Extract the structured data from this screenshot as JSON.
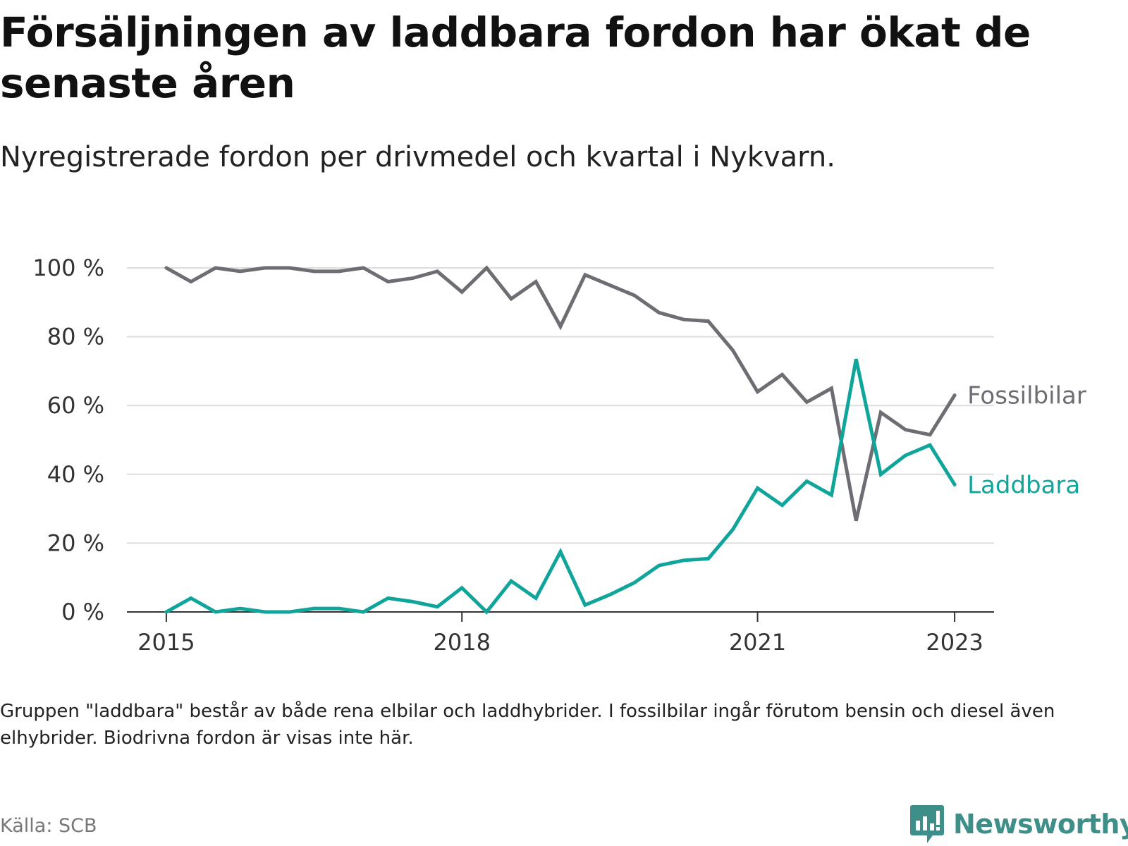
{
  "header": {
    "title": "Försäljningen av laddbara fordon har ökat de senaste åren",
    "subtitle": "Nyregistrerade fordon per drivmedel och kvartal i Nykvarn."
  },
  "footer": {
    "note": "Gruppen \"laddbara\" består av både rena elbilar och laddhybrider. I fossilbilar ingår förutom bensin och diesel även elhybrider. Biodrivna fordon är visas inte här.",
    "source": "Källa: SCB",
    "brand": "Newsworthy"
  },
  "colors": {
    "fossil": "#6e6d74",
    "laddbara": "#0fa59b",
    "grid": "#dddddd",
    "brand": "#3e8f8a"
  },
  "chart_data": {
    "type": "line",
    "title": "Försäljningen av laddbara fordon har ökat de senaste åren",
    "subtitle": "Nyregistrerade fordon per drivmedel och kvartal i Nykvarn.",
    "xlabel": "",
    "ylabel": "",
    "x_start_year": 2015,
    "quarters_per_year": 4,
    "xticks": [
      {
        "value": 2015,
        "label": "2015"
      },
      {
        "value": 2018,
        "label": "2018"
      },
      {
        "value": 2021,
        "label": "2021"
      },
      {
        "value": 2023,
        "label": "2023"
      }
    ],
    "xlim": [
      2014.6,
      2023.4
    ],
    "ylim": [
      0,
      100
    ],
    "yticks": [
      {
        "value": 0,
        "label": "0 %"
      },
      {
        "value": 20,
        "label": "20 %"
      },
      {
        "value": 40,
        "label": "40 %"
      },
      {
        "value": 60,
        "label": "60 %"
      },
      {
        "value": 80,
        "label": "80 %"
      },
      {
        "value": 100,
        "label": "100 %"
      }
    ],
    "grid": true,
    "legend": "direct labels at line ends",
    "series": [
      {
        "name": "Fossilbilar",
        "key": "fossil",
        "values": [
          100,
          96,
          100,
          99,
          100,
          100,
          99,
          99,
          100,
          96,
          97,
          99,
          93,
          100,
          91,
          96,
          83,
          98,
          95,
          92,
          87,
          85,
          84.5,
          76,
          64,
          69,
          61,
          65,
          26.5,
          58,
          53,
          51.5,
          63
        ]
      },
      {
        "name": "Laddbara",
        "key": "laddbara",
        "values": [
          0,
          4,
          0,
          1,
          0,
          0,
          1,
          1,
          0,
          4,
          3,
          1.5,
          7,
          0,
          9,
          4,
          17.5,
          2,
          5,
          8.5,
          13.5,
          15,
          15.5,
          24,
          36,
          31,
          38,
          34,
          73.5,
          40,
          45.5,
          48.5,
          37
        ]
      }
    ]
  }
}
